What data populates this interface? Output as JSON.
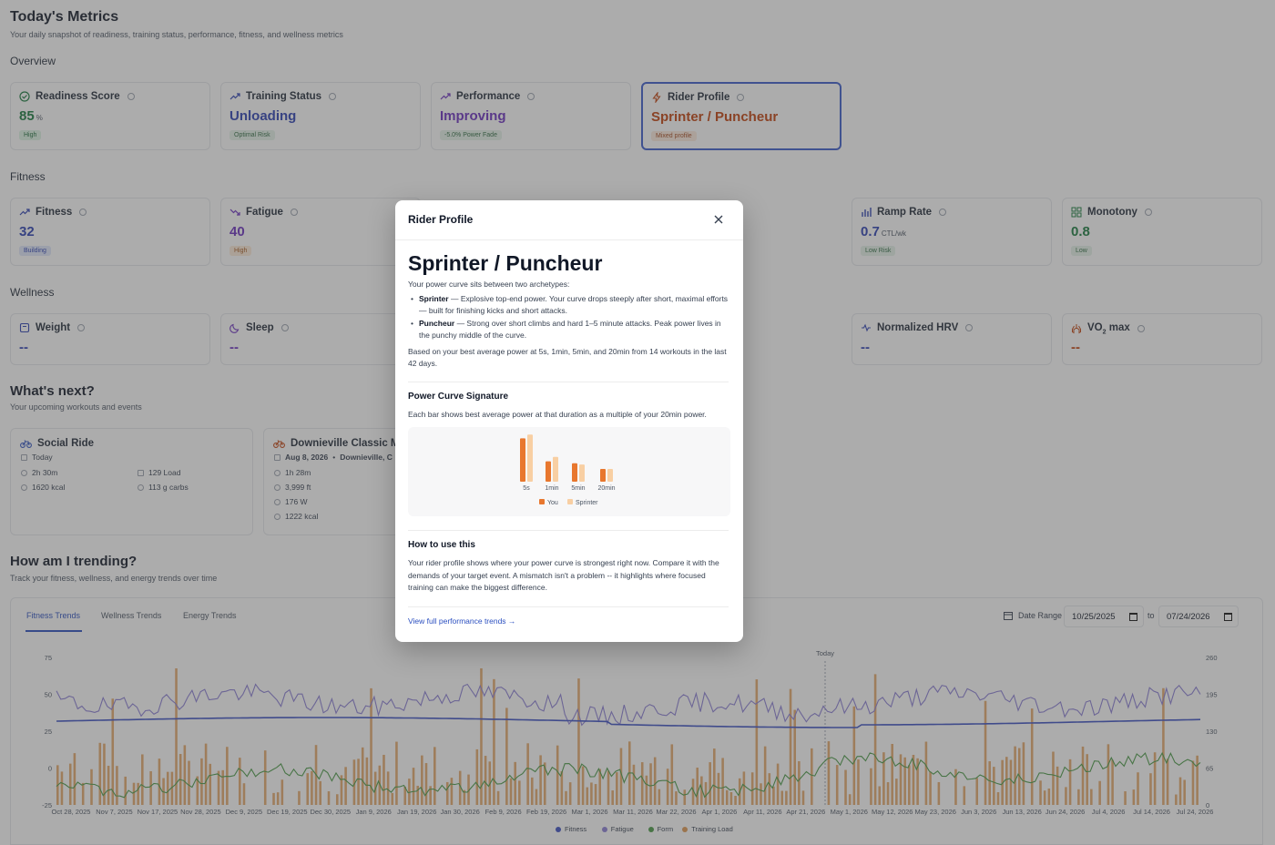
{
  "page": {
    "title": "Today's Metrics",
    "subtitle": "Your daily snapshot of readiness, training status, performance, fitness, and wellness metrics"
  },
  "overview": {
    "label": "Overview",
    "cards": [
      {
        "title": "Readiness Score",
        "icon": "check-circle-icon",
        "value": "85",
        "unit": "%",
        "badge": "High",
        "color": "#177a3c",
        "badge_bg": "#dcf5e3",
        "badge_fg": "#1b6b39"
      },
      {
        "title": "Training Status",
        "icon": "trend-up-icon",
        "value": "Unloading",
        "unit": "",
        "badge": "Optimal Risk",
        "color": "#2b3fb3",
        "badge_bg": "#e6f3ea",
        "badge_fg": "#2e6a40"
      },
      {
        "title": "Performance",
        "icon": "trend-up-icon",
        "value": "Improving",
        "unit": "",
        "badge": "-5.0% Power Fade",
        "color": "#6b2fbf",
        "badge_bg": "#e6f3ea",
        "badge_fg": "#2e6a40"
      },
      {
        "title": "Rider Profile",
        "icon": "bolt-icon",
        "value": "Sprinter / Puncheur",
        "unit": "",
        "badge": "Mixed profile",
        "color": "#c2410c",
        "badge_bg": "#fdecdf",
        "badge_fg": "#a4461c"
      }
    ]
  },
  "fitness": {
    "label": "Fitness",
    "cards": [
      {
        "title": "Fitness",
        "icon": "trend-up-icon",
        "value": "32",
        "unit": "",
        "badge": "Building",
        "color": "#2b3fb3",
        "badge_bg": "#e0e8fb",
        "badge_fg": "#2b3fb3"
      },
      {
        "title": "Fatigue",
        "icon": "trend-down-icon",
        "value": "40",
        "unit": "",
        "badge": "High",
        "color": "#6b2fbf",
        "badge_bg": "#fdecd9",
        "badge_fg": "#a4561c"
      },
      {
        "title": "Ramp Rate",
        "icon": "bar-chart-icon",
        "value": "0.7",
        "unit": "CTL/wk",
        "badge": "Low Risk",
        "color": "#2b3fb3",
        "badge_bg": "#e6f3ea",
        "badge_fg": "#2e6a40"
      },
      {
        "title": "Monotony",
        "icon": "grid-icon",
        "value": "0.8",
        "unit": "",
        "badge": "Low",
        "color": "#177a3c",
        "badge_bg": "#e6f3ea",
        "badge_fg": "#2e6a40"
      }
    ]
  },
  "wellness": {
    "label": "Wellness",
    "cards": [
      {
        "title": "Weight",
        "icon": "scale-icon",
        "value": "--",
        "color": "#2b3fb3"
      },
      {
        "title": "Sleep",
        "icon": "moon-icon",
        "value": "--",
        "color": "#6b2fbf"
      },
      {
        "title": "Normalized HRV",
        "icon": "pulse-icon",
        "value": "--",
        "color": "#2b3fb3"
      },
      {
        "title": "VO",
        "title_sub": "2",
        "title_tail": " max",
        "icon": "lungs-icon",
        "value": "--",
        "color": "#c2410c"
      }
    ]
  },
  "next": {
    "title": "What's next?",
    "subtitle": "Your upcoming workouts and events",
    "social": {
      "title": "Social Ride",
      "date": "Today",
      "duration": "2h 30m",
      "energy": "1620 kcal",
      "load": "129 Load",
      "carbs": "113 g carbs"
    },
    "event": {
      "title": "Downieville Classic M",
      "date": "Aug 8, 2026",
      "location": "Downieville, C",
      "duration": "1h 28m",
      "elevation": "3,999 ft",
      "power": "176 W",
      "energy": "1222 kcal"
    }
  },
  "trending": {
    "title": "How am I trending?",
    "subtitle": "Track your fitness, wellness, and energy trends over time",
    "tabs": [
      "Fitness Trends",
      "Wellness Trends",
      "Energy Trends"
    ],
    "date_range_label": "Date Range",
    "date_from": "10/25/2025",
    "date_to_label": "to",
    "date_to": "07/24/2026",
    "today_label": "Today",
    "left_ticks": [
      "75",
      "50",
      "25",
      "0",
      "-25"
    ],
    "right_ticks": [
      "260",
      "195",
      "130",
      "65",
      "0"
    ],
    "x_ticks": [
      "Oct 28, 2025",
      "Nov 7, 2025",
      "Nov 17, 2025",
      "Nov 28, 2025",
      "Dec 9, 2025",
      "Dec 19, 2025",
      "Dec 30, 2025",
      "Jan 9, 2026",
      "Jan 19, 2026",
      "Jan 30, 2026",
      "Feb 9, 2026",
      "Feb 19, 2026",
      "Mar 1, 2026",
      "Mar 11, 2026",
      "Mar 22, 2026",
      "Apr 1, 2026",
      "Apr 11, 2026",
      "Apr 21, 2026",
      "May 1, 2026",
      "May 12, 2026",
      "May 23, 2026",
      "Jun 3, 2026",
      "Jun 13, 2026",
      "Jun 24, 2026",
      "Jul 4, 2026",
      "Jul 14, 2026",
      "Jul 24, 2026"
    ],
    "legend": [
      {
        "name": "Fitness",
        "color": "#3b4fc4"
      },
      {
        "name": "Fatigue",
        "color": "#8b7fd6"
      },
      {
        "name": "Form",
        "color": "#4a9a45"
      },
      {
        "name": "Training Load",
        "color": "#e09a52"
      }
    ]
  },
  "modal": {
    "header": "Rider Profile",
    "title": "Sprinter / Puncheur",
    "intro": "Your power curve sits between two archetypes:",
    "bullets": [
      {
        "term": "Sprinter",
        "text": " — Explosive top-end power. Your curve drops steeply after short, maximal efforts — built for finishing kicks and short attacks."
      },
      {
        "term": "Puncheur",
        "text": " — Strong over short climbs and hard 1–5 minute attacks. Peak power lives in the punchy middle of the curve."
      }
    ],
    "basis": "Based on your best average power at 5s, 1min, 5min, and 20min from 14 workouts in the last 42 days.",
    "sig_title": "Power Curve Signature",
    "sig_desc": "Each bar shows best average power at that duration as a multiple of your 20min power.",
    "how_title": "How to use this",
    "how_text": "Your rider profile shows where your power curve is strongest right now. Compare it with the demands of your target event. A mismatch isn't a problem -- it highlights where focused training can make the biggest difference.",
    "link": "View full performance trends →"
  },
  "chart_data": {
    "type": "bar",
    "categories": [
      "5s",
      "1min",
      "5min",
      "20min"
    ],
    "series": [
      {
        "name": "You",
        "color": "#e8772e",
        "values": [
          3.4,
          1.6,
          1.45,
          1.0
        ]
      },
      {
        "name": "Sprinter",
        "color": "#f8cfa3",
        "values": [
          3.7,
          1.95,
          1.35,
          1.0
        ]
      }
    ],
    "ylim": [
      0,
      4
    ],
    "legend": "bottom"
  }
}
